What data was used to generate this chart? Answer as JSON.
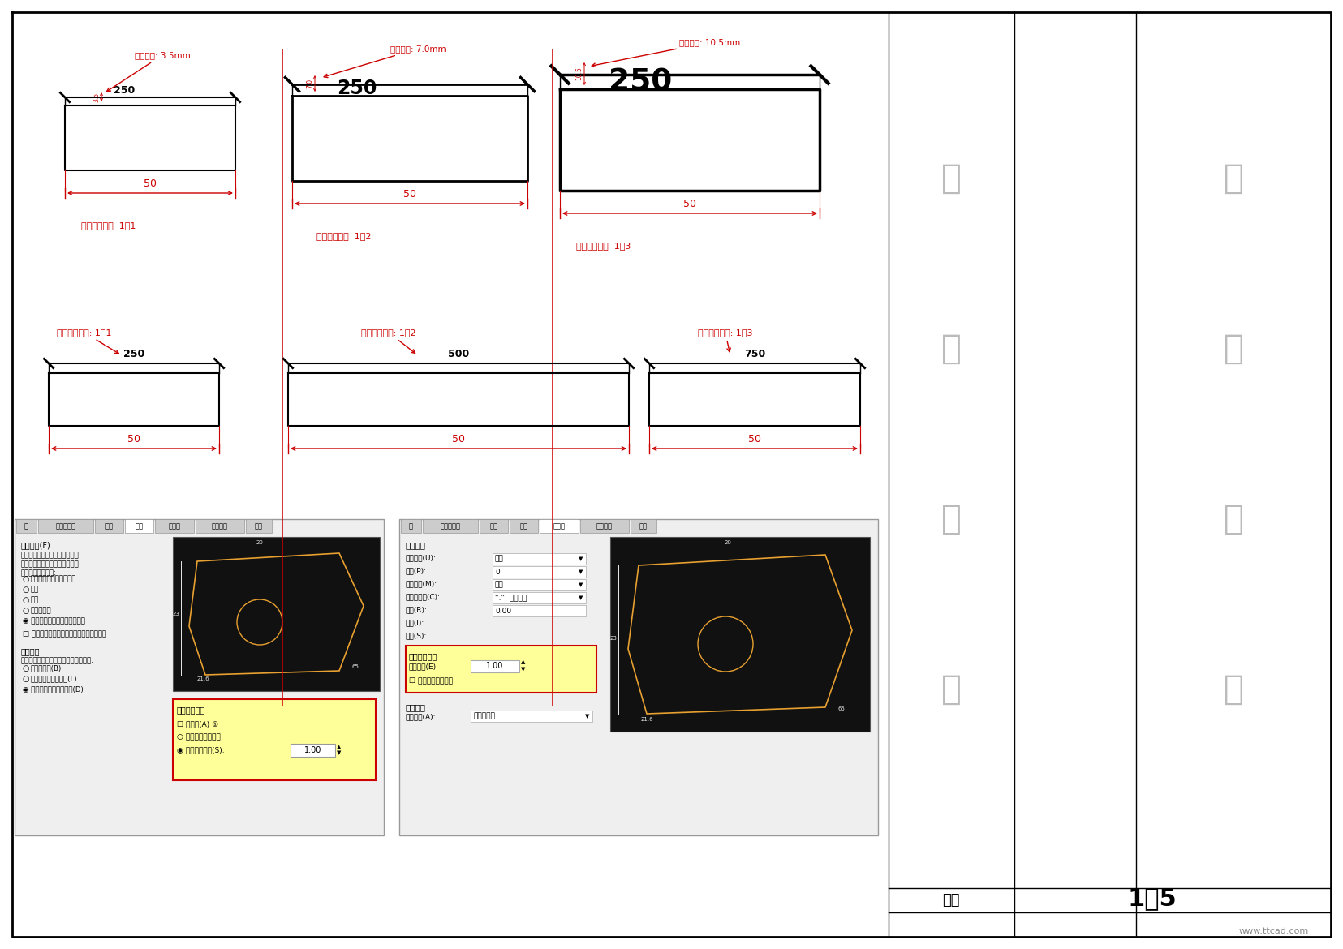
{
  "bg_color": "#ffffff",
  "black": "#000000",
  "red": "#cc0000",
  "figure_width": 16.55,
  "figure_height": 11.7,
  "bottom_label_left": "比例",
  "bottom_label_right": "1：5",
  "watermark": "www.ttcad.com",
  "col1_geo_label": "标注几何比例  1：1",
  "col2_geo_label": "标注几何比例  1：2",
  "col3_geo_label": "标注几何比例  1：3",
  "col1_num_label": "标注数値比例: 1：1",
  "col2_num_label": "标注数値比例: 1：2",
  "col3_num_label": "标注数値比例: 1：3",
  "text_size1": "字体高度: 3.5mm",
  "text_size2": "字体高度: 7.0mm",
  "text_size3": "字体高度: 10.5mm",
  "right_chars1": [
    "图",
    "形",
    "区",
    "域"
  ],
  "right_chars2": [
    "图",
    "框",
    "区",
    "域"
  ],
  "dlg1_tabs": [
    "线",
    "符号和箭头",
    "文字",
    "调整",
    "主单位",
    "换算单位",
    "公差"
  ],
  "dlg2_tabs": [
    "线",
    "符号和箭头",
    "文字",
    "调整",
    "主单位",
    "换算单位",
    "公差"
  ],
  "dlg1_active_tab": 3,
  "dlg2_active_tab": 4,
  "tiao_zheng_xuan_xiang": "调整选项(F)",
  "if_text": "如果尺寸界线之间没有足够的空",
  "if_text2": "间来放置文字和箭头，那么首先",
  "if_text3": "从尺寸界线中移出:",
  "radio1": "文字或箭头（最佳效果）",
  "radio2": "箭头",
  "radio3": "文字",
  "radio4": "文字和箭头",
  "radio5": "◉ 文字始终保持在尺寸界线之间",
  "chk1": "若箭头不能放在尺寸界线内，则将其消除",
  "wen_zi_wei_zhi": "文字位置",
  "wen_zi_wei_zhi2": "文字不在默认位置显示时，将其放置在:",
  "wz1": "尺寸线旁边(B)",
  "wz2": "尺寸线上方，带引线(L)",
  "wz3": "◉ 尺寸线上方，不带引线(D)",
  "biao_zhu_te_zheng": "标注特征比例",
  "zhu_shi_xing": "☐ 注释性(A) ①",
  "jiang_biao": "○ 将标注缩放到布局",
  "shi_yong": "◉ 使用全局比例(S):",
  "xian_xing": "线性标注",
  "dan_wei_ge_shi": "单位格式(U):",
  "jing_du": "精度(P):",
  "fen_shu_ge_shi": "分数格式(M):",
  "xiao_shu_fen": "小数分隔符(C):",
  "she_ru": "舍入(R):",
  "qian_zhui": "前缀(I):",
  "hou_zhui": "后缀(S):",
  "ce_liang": "测量单位比例",
  "bi_li_yin_zi": "比例因子(E):",
  "jin_ying_yong": "☐ 仅应用到布局标注",
  "jiao_du": "角度标注",
  "dan_wei_ge_shi_a": "单位格式(A):",
  "xiao_shu_val": "小数",
  "jing_du_val": "0",
  "fen_shu_val": "水平",
  "xiao_shu_sep": "“.”  （句点）",
  "she_ru_val": "0.00",
  "shi_jin_val": "十进制度数"
}
